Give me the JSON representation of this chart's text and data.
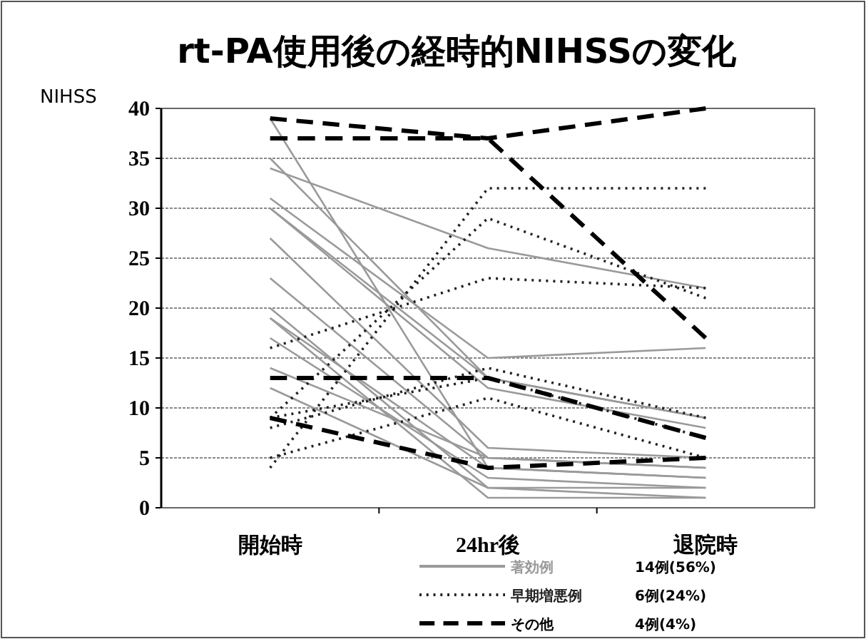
{
  "chart_data": {
    "type": "line",
    "title": "rt-PA使用後の経時的NIHSSの変化",
    "ylabel": "NIHSS",
    "categories": [
      "開始時",
      "24hr後",
      "退院時"
    ],
    "ylim": [
      0,
      40
    ],
    "yticks": [
      0,
      5,
      10,
      15,
      20,
      25,
      30,
      35,
      40
    ],
    "grid": "y",
    "legend": "bottom",
    "annotations": [
      "14例(56%)",
      "6例(24%)",
      "4例(4%)"
    ],
    "series": [
      {
        "name": "著効例",
        "color": "#9a9a9a",
        "line_style": "solid",
        "values": [
          34,
          26,
          22
        ]
      },
      {
        "color": "#9a9a9a",
        "line_style": "solid",
        "values": [
          39,
          4,
          3
        ]
      },
      {
        "color": "#9a9a9a",
        "line_style": "solid",
        "values": [
          35,
          13,
          9
        ]
      },
      {
        "color": "#9a9a9a",
        "line_style": "solid",
        "values": [
          31,
          15,
          16
        ]
      },
      {
        "color": "#9a9a9a",
        "line_style": "solid",
        "values": [
          30,
          12,
          8
        ]
      },
      {
        "color": "#9a9a9a",
        "line_style": "solid",
        "values": [
          27,
          6,
          5
        ]
      },
      {
        "color": "#9a9a9a",
        "line_style": "solid",
        "values": [
          23,
          5,
          4
        ]
      },
      {
        "color": "#9a9a9a",
        "line_style": "solid",
        "values": [
          20,
          2,
          2
        ]
      },
      {
        "color": "#9a9a9a",
        "line_style": "solid",
        "values": [
          19,
          1,
          1
        ]
      },
      {
        "color": "#9a9a9a",
        "line_style": "solid",
        "values": [
          19,
          4,
          3
        ]
      },
      {
        "color": "#9a9a9a",
        "line_style": "solid",
        "values": [
          14,
          5,
          4
        ]
      },
      {
        "color": "#9a9a9a",
        "line_style": "solid",
        "values": [
          12,
          2,
          1
        ]
      },
      {
        "color": "#9a9a9a",
        "line_style": "solid",
        "values": [
          17,
          3,
          2
        ]
      },
      {
        "color": "#9a9a9a",
        "line_style": "solid",
        "values": [
          30,
          13,
          9
        ]
      },
      {
        "name": "早期増悪例",
        "color": "#222222",
        "line_style": "dotted",
        "values": [
          16,
          23,
          22
        ]
      },
      {
        "color": "#222222",
        "line_style": "dotted",
        "values": [
          4,
          32,
          32
        ]
      },
      {
        "color": "#222222",
        "line_style": "dotted",
        "values": [
          9,
          29,
          21
        ]
      },
      {
        "color": "#222222",
        "line_style": "dotted",
        "values": [
          5,
          11,
          5
        ]
      },
      {
        "color": "#222222",
        "line_style": "dotted",
        "values": [
          8,
          14,
          9
        ]
      },
      {
        "color": "#222222",
        "line_style": "dotted",
        "values": [
          9,
          13,
          7
        ]
      },
      {
        "name": "その他",
        "color": "#000000",
        "line_style": "dashed",
        "values": [
          39,
          37,
          40
        ]
      },
      {
        "color": "#000000",
        "line_style": "dashed",
        "values": [
          37,
          37,
          17
        ]
      },
      {
        "color": "#000000",
        "line_style": "dashed",
        "values": [
          13,
          13,
          7
        ]
      },
      {
        "color": "#000000",
        "line_style": "dashed",
        "values": [
          9,
          4,
          5
        ]
      }
    ]
  }
}
